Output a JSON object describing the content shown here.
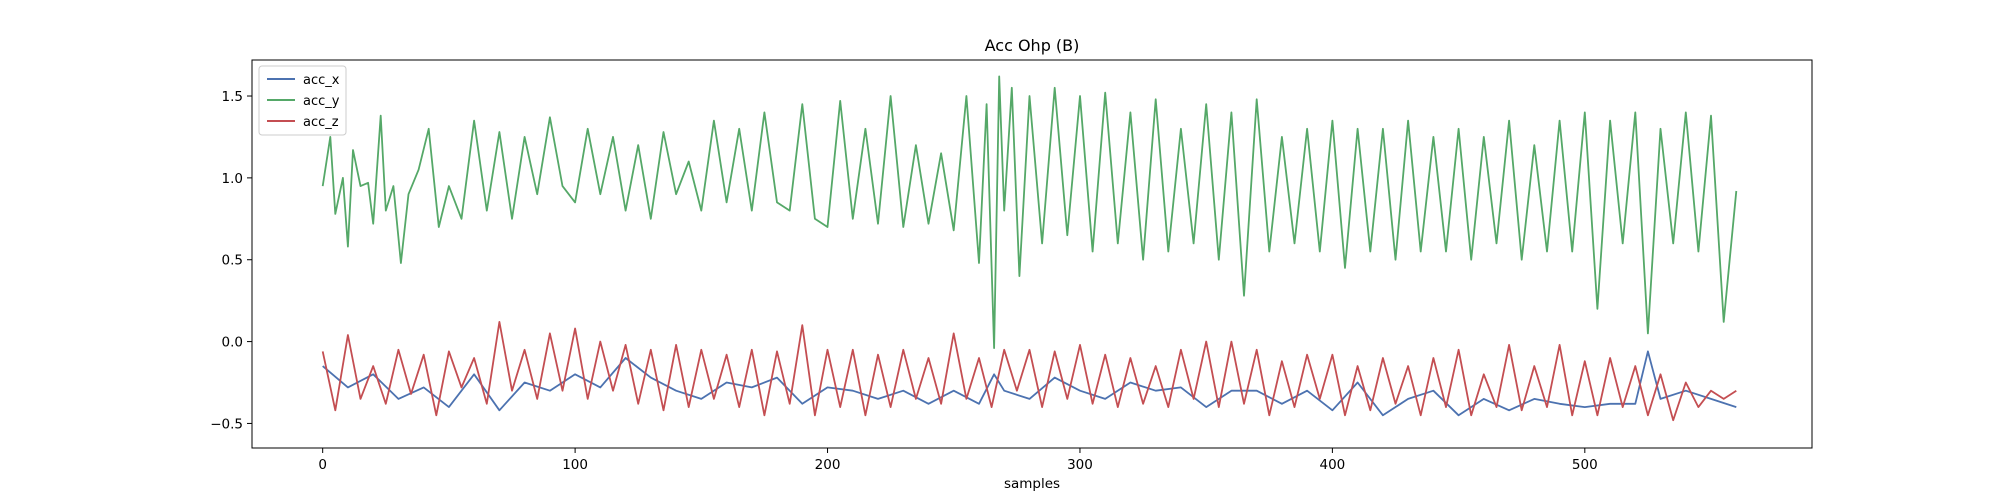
{
  "chart_data": {
    "type": "line",
    "title": "Acc Ohp (B)",
    "xlabel": "samples",
    "ylabel": "",
    "xlim": [
      -28,
      590
    ],
    "ylim": [
      -0.65,
      1.72
    ],
    "xticks": [
      0,
      100,
      200,
      300,
      400,
      500
    ],
    "yticks": [
      -0.5,
      0.0,
      0.5,
      1.0,
      1.5
    ],
    "ytick_labels": [
      "−0.5",
      "0.0",
      "0.5",
      "1.0",
      "1.5"
    ],
    "grid": false,
    "legend_position": "top-left",
    "series": [
      {
        "name": "acc_x",
        "color": "#4c72b0",
        "x": [
          0,
          10,
          20,
          30,
          40,
          50,
          60,
          70,
          80,
          90,
          100,
          110,
          120,
          130,
          140,
          150,
          160,
          170,
          180,
          190,
          200,
          210,
          220,
          230,
          240,
          250,
          260,
          266,
          270,
          280,
          290,
          300,
          310,
          320,
          330,
          340,
          350,
          360,
          370,
          380,
          390,
          400,
          410,
          420,
          430,
          440,
          450,
          460,
          470,
          480,
          490,
          500,
          510,
          520,
          525,
          530,
          540,
          550,
          560
        ],
        "values": [
          -0.15,
          -0.28,
          -0.2,
          -0.35,
          -0.28,
          -0.4,
          -0.2,
          -0.42,
          -0.25,
          -0.3,
          -0.2,
          -0.28,
          -0.1,
          -0.22,
          -0.3,
          -0.35,
          -0.25,
          -0.28,
          -0.22,
          -0.38,
          -0.28,
          -0.3,
          -0.35,
          -0.3,
          -0.38,
          -0.3,
          -0.38,
          -0.2,
          -0.3,
          -0.35,
          -0.22,
          -0.3,
          -0.35,
          -0.25,
          -0.3,
          -0.28,
          -0.4,
          -0.3,
          -0.3,
          -0.38,
          -0.3,
          -0.42,
          -0.25,
          -0.45,
          -0.35,
          -0.3,
          -0.45,
          -0.35,
          -0.42,
          -0.35,
          -0.38,
          -0.4,
          -0.38,
          -0.38,
          -0.06,
          -0.35,
          -0.3,
          -0.35,
          -0.4
        ]
      },
      {
        "name": "acc_y",
        "color": "#55a868",
        "x": [
          0,
          3,
          5,
          8,
          10,
          12,
          15,
          18,
          20,
          23,
          25,
          28,
          31,
          34,
          38,
          42,
          46,
          50,
          55,
          60,
          65,
          70,
          75,
          80,
          85,
          90,
          95,
          100,
          105,
          110,
          115,
          120,
          125,
          130,
          135,
          140,
          145,
          150,
          155,
          160,
          165,
          170,
          175,
          180,
          185,
          190,
          195,
          200,
          205,
          210,
          215,
          220,
          225,
          230,
          235,
          240,
          245,
          250,
          255,
          260,
          263,
          266,
          268,
          270,
          273,
          276,
          280,
          285,
          290,
          295,
          300,
          305,
          310,
          315,
          320,
          325,
          330,
          335,
          340,
          345,
          350,
          355,
          360,
          365,
          370,
          375,
          380,
          385,
          390,
          395,
          400,
          405,
          410,
          415,
          420,
          425,
          430,
          435,
          440,
          445,
          450,
          455,
          460,
          465,
          470,
          475,
          480,
          485,
          490,
          495,
          500,
          505,
          510,
          515,
          520,
          525,
          530,
          535,
          540,
          545,
          550,
          555,
          560
        ],
        "values": [
          0.95,
          1.25,
          0.78,
          1.0,
          0.58,
          1.17,
          0.95,
          0.97,
          0.72,
          1.38,
          0.8,
          0.95,
          0.48,
          0.9,
          1.05,
          1.3,
          0.7,
          0.95,
          0.75,
          1.35,
          0.8,
          1.28,
          0.75,
          1.25,
          0.9,
          1.37,
          0.95,
          0.85,
          1.3,
          0.9,
          1.25,
          0.8,
          1.2,
          0.75,
          1.28,
          0.9,
          1.1,
          0.8,
          1.35,
          0.85,
          1.3,
          0.8,
          1.4,
          0.85,
          0.8,
          1.45,
          0.75,
          0.7,
          1.47,
          0.75,
          1.3,
          0.72,
          1.5,
          0.7,
          1.2,
          0.72,
          1.15,
          0.68,
          1.5,
          0.48,
          1.45,
          -0.04,
          1.62,
          0.8,
          1.55,
          0.4,
          1.5,
          0.6,
          1.55,
          0.65,
          1.5,
          0.55,
          1.52,
          0.6,
          1.4,
          0.5,
          1.48,
          0.55,
          1.3,
          0.6,
          1.45,
          0.5,
          1.4,
          0.28,
          1.48,
          0.55,
          1.25,
          0.6,
          1.3,
          0.55,
          1.35,
          0.45,
          1.3,
          0.55,
          1.3,
          0.5,
          1.35,
          0.55,
          1.25,
          0.55,
          1.3,
          0.5,
          1.25,
          0.6,
          1.35,
          0.5,
          1.2,
          0.55,
          1.35,
          0.55,
          1.4,
          0.2,
          1.35,
          0.6,
          1.4,
          0.05,
          1.3,
          0.6,
          1.4,
          0.55,
          1.38,
          0.12,
          0.92
        ]
      },
      {
        "name": "acc_z",
        "color": "#c44e52",
        "x": [
          0,
          5,
          10,
          15,
          20,
          25,
          30,
          35,
          40,
          45,
          50,
          55,
          60,
          65,
          70,
          75,
          80,
          85,
          90,
          95,
          100,
          105,
          110,
          115,
          120,
          125,
          130,
          135,
          140,
          145,
          150,
          155,
          160,
          165,
          170,
          175,
          180,
          185,
          190,
          195,
          200,
          205,
          210,
          215,
          220,
          225,
          230,
          235,
          240,
          245,
          250,
          255,
          260,
          265,
          270,
          275,
          280,
          285,
          290,
          295,
          300,
          305,
          310,
          315,
          320,
          325,
          330,
          335,
          340,
          345,
          350,
          355,
          360,
          365,
          370,
          375,
          380,
          385,
          390,
          395,
          400,
          405,
          410,
          415,
          420,
          425,
          430,
          435,
          440,
          445,
          450,
          455,
          460,
          465,
          470,
          475,
          480,
          485,
          490,
          495,
          500,
          505,
          510,
          515,
          520,
          525,
          530,
          535,
          540,
          545,
          550,
          555,
          560
        ],
        "values": [
          -0.06,
          -0.42,
          0.04,
          -0.35,
          -0.15,
          -0.38,
          -0.05,
          -0.32,
          -0.08,
          -0.45,
          -0.06,
          -0.28,
          -0.1,
          -0.38,
          0.12,
          -0.3,
          -0.05,
          -0.35,
          0.05,
          -0.3,
          0.08,
          -0.35,
          0.0,
          -0.3,
          -0.02,
          -0.38,
          -0.05,
          -0.42,
          -0.02,
          -0.4,
          -0.05,
          -0.35,
          -0.08,
          -0.4,
          -0.05,
          -0.45,
          -0.06,
          -0.38,
          0.1,
          -0.45,
          -0.05,
          -0.4,
          -0.05,
          -0.45,
          -0.08,
          -0.4,
          -0.05,
          -0.35,
          -0.1,
          -0.38,
          0.05,
          -0.35,
          -0.1,
          -0.4,
          -0.05,
          -0.3,
          -0.05,
          -0.4,
          -0.06,
          -0.35,
          -0.02,
          -0.38,
          -0.08,
          -0.4,
          -0.1,
          -0.38,
          -0.15,
          -0.4,
          -0.05,
          -0.35,
          0.0,
          -0.4,
          0.0,
          -0.38,
          -0.05,
          -0.45,
          -0.12,
          -0.4,
          -0.08,
          -0.35,
          -0.08,
          -0.45,
          -0.15,
          -0.42,
          -0.1,
          -0.38,
          -0.15,
          -0.45,
          -0.1,
          -0.4,
          -0.05,
          -0.45,
          -0.2,
          -0.4,
          -0.02,
          -0.42,
          -0.15,
          -0.4,
          -0.02,
          -0.45,
          -0.12,
          -0.45,
          -0.1,
          -0.4,
          -0.15,
          -0.45,
          -0.2,
          -0.48,
          -0.25,
          -0.4,
          -0.3,
          -0.35,
          -0.3
        ]
      }
    ]
  }
}
